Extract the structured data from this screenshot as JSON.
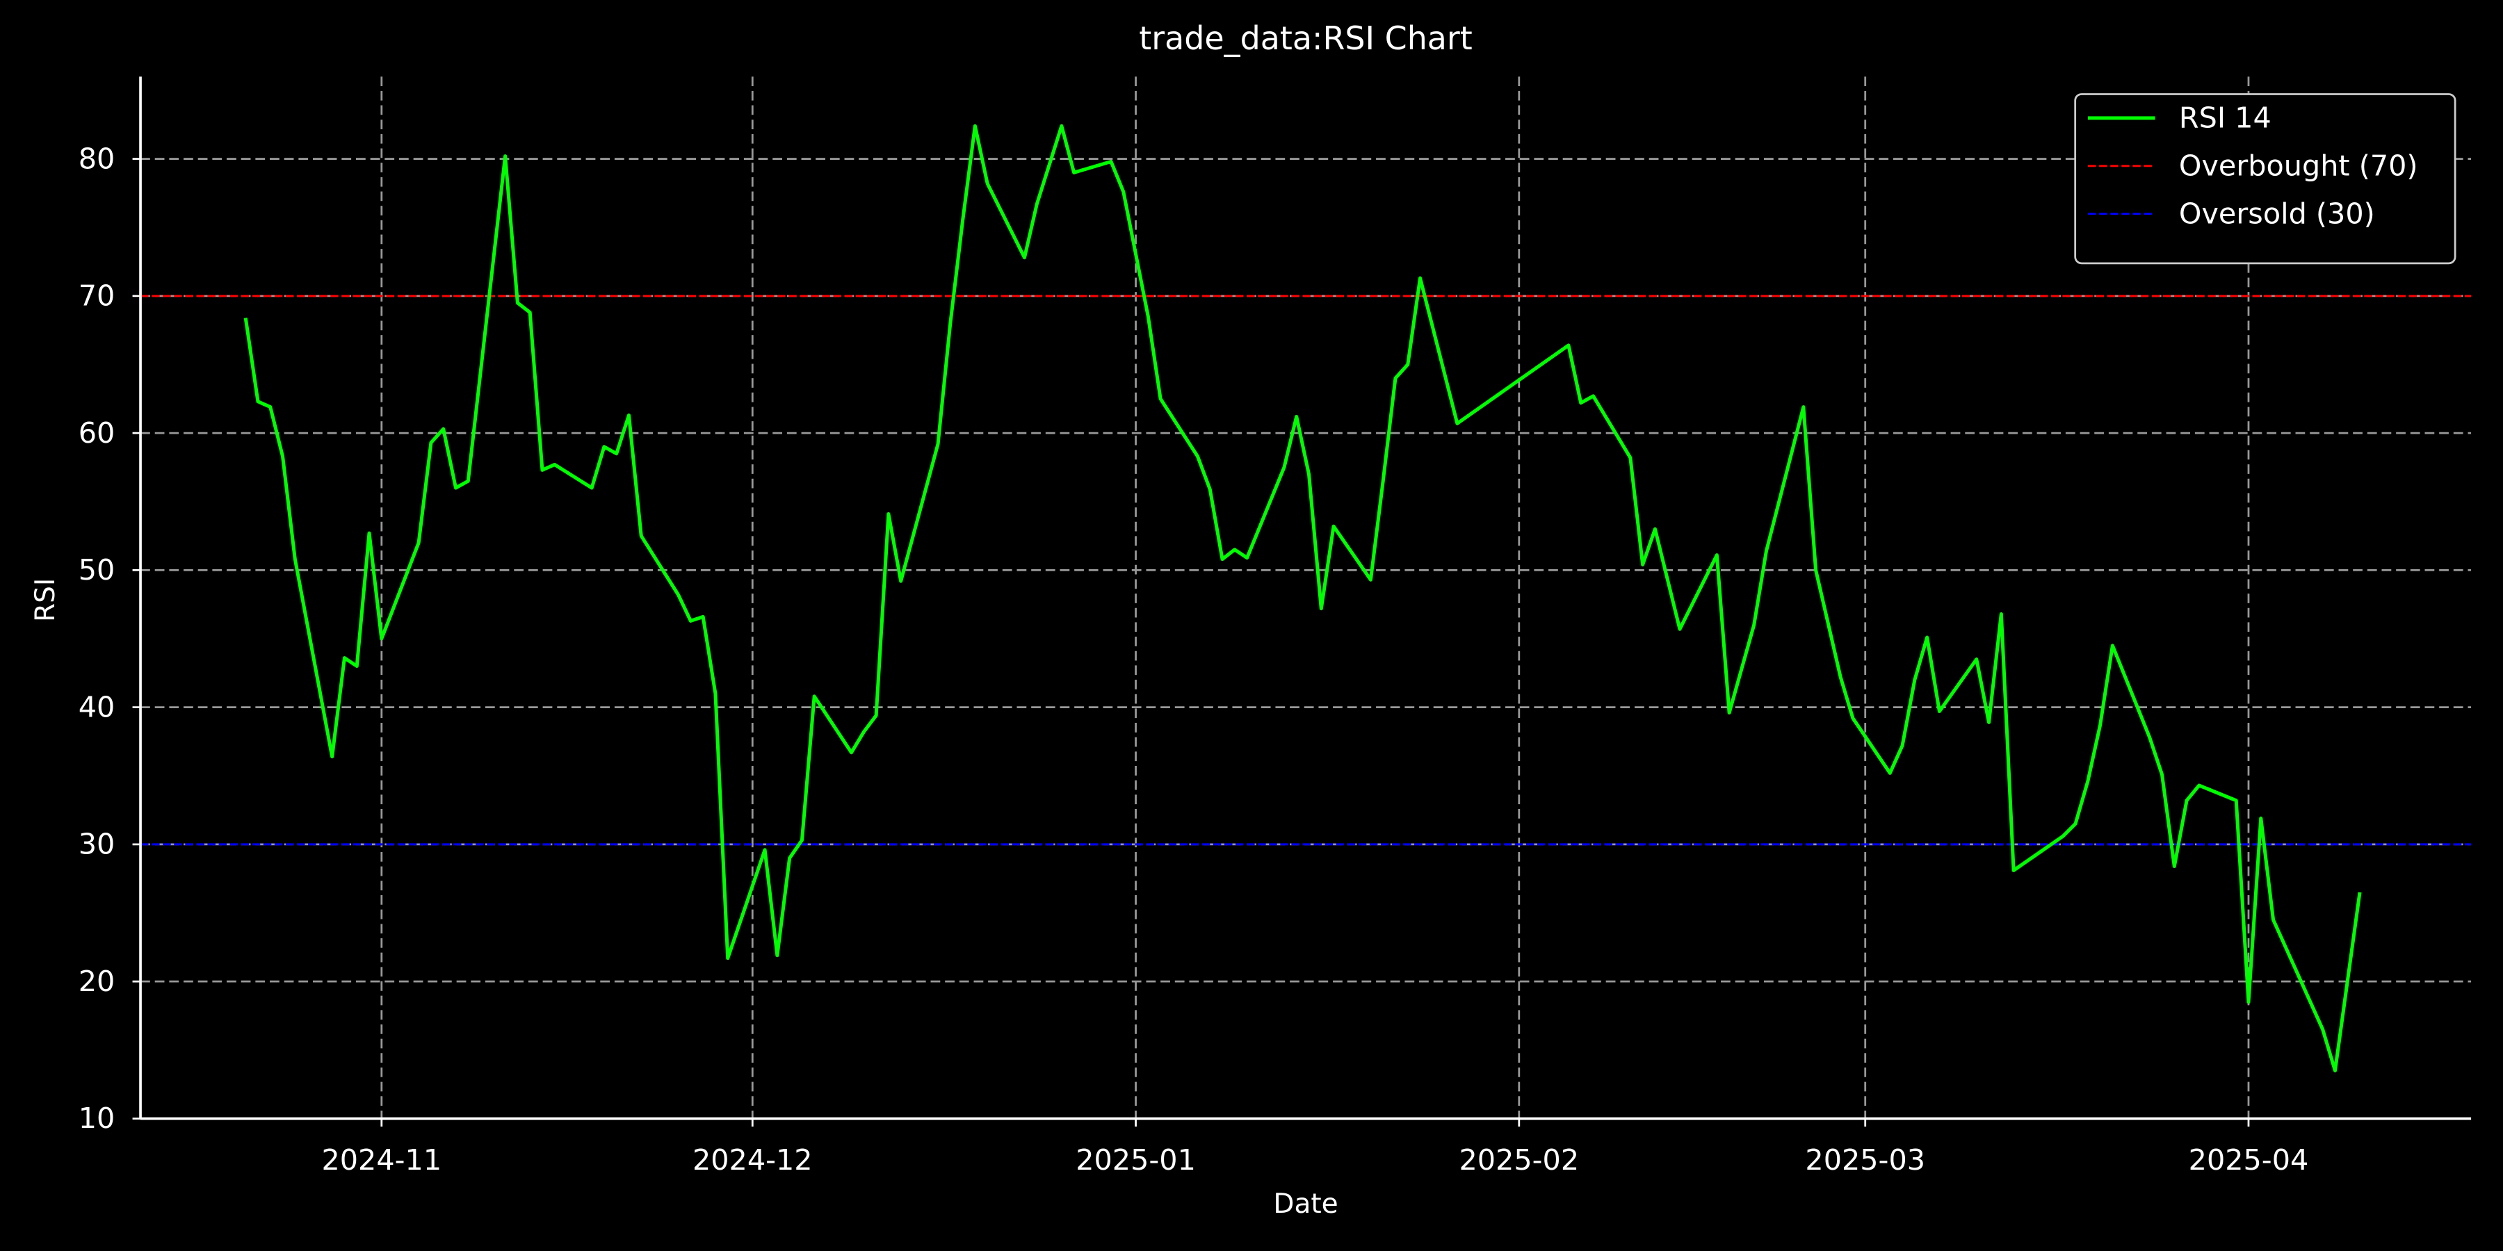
{
  "chart_data": {
    "type": "line",
    "title": "trade_data:RSI Chart",
    "xlabel": "Date",
    "ylabel": "RSI",
    "x": [
      "2024-10-21",
      "2024-10-22",
      "2024-10-23",
      "2024-10-24",
      "2024-10-25",
      "2024-10-28",
      "2024-10-29",
      "2024-10-30",
      "2024-10-31",
      "2024-11-01",
      "2024-11-04",
      "2024-11-05",
      "2024-11-06",
      "2024-11-07",
      "2024-11-08",
      "2024-11-11",
      "2024-11-12",
      "2024-11-13",
      "2024-11-14",
      "2024-11-15",
      "2024-11-18",
      "2024-11-19",
      "2024-11-20",
      "2024-11-21",
      "2024-11-22",
      "2024-11-25",
      "2024-11-26",
      "2024-11-27",
      "2024-11-28",
      "2024-11-29",
      "2024-12-02",
      "2024-12-03",
      "2024-12-04",
      "2024-12-05",
      "2024-12-06",
      "2024-12-09",
      "2024-12-10",
      "2024-12-11",
      "2024-12-12",
      "2024-12-13",
      "2024-12-16",
      "2024-12-17",
      "2024-12-18",
      "2024-12-19",
      "2024-12-20",
      "2024-12-23",
      "2024-12-24",
      "2024-12-26",
      "2024-12-27",
      "2024-12-30",
      "2024-12-31",
      "2025-01-02",
      "2025-01-03",
      "2025-01-06",
      "2025-01-07",
      "2025-01-08",
      "2025-01-09",
      "2025-01-10",
      "2025-01-13",
      "2025-01-14",
      "2025-01-15",
      "2025-01-16",
      "2025-01-17",
      "2025-01-20",
      "2025-01-21",
      "2025-01-22",
      "2025-01-23",
      "2025-01-24",
      "2025-01-27",
      "2025-02-05",
      "2025-02-06",
      "2025-02-07",
      "2025-02-10",
      "2025-02-11",
      "2025-02-12",
      "2025-02-14",
      "2025-02-17",
      "2025-02-18",
      "2025-02-20",
      "2025-02-21",
      "2025-02-24",
      "2025-02-25",
      "2025-02-27",
      "2025-02-28",
      "2025-03-03",
      "2025-03-04",
      "2025-03-05",
      "2025-03-06",
      "2025-03-07",
      "2025-03-10",
      "2025-03-11",
      "2025-03-12",
      "2025-03-13",
      "2025-03-17",
      "2025-03-18",
      "2025-03-19",
      "2025-03-20",
      "2025-03-21",
      "2025-03-24",
      "2025-03-25",
      "2025-03-26",
      "2025-03-27",
      "2025-03-28",
      "2025-03-31",
      "2025-04-01",
      "2025-04-02",
      "2025-04-03",
      "2025-04-07",
      "2025-04-08",
      "2025-04-10"
    ],
    "series": [
      {
        "name": "RSI 14",
        "color": "#00ff00",
        "values": [
          68.4,
          62.3,
          61.9,
          58.3,
          50.8,
          36.4,
          43.6,
          43.0,
          52.7,
          45.0,
          52.0,
          59.3,
          60.3,
          56.0,
          56.5,
          80.2,
          69.5,
          68.8,
          57.3,
          57.7,
          56.0,
          59.0,
          58.5,
          61.3,
          52.5,
          48.2,
          46.3,
          46.6,
          41.0,
          21.7,
          29.6,
          21.9,
          29.0,
          30.3,
          40.8,
          36.7,
          38.2,
          39.4,
          54.1,
          49.2,
          59.2,
          68.0,
          75.5,
          82.4,
          78.2,
          72.8,
          76.7,
          82.4,
          79.0,
          79.8,
          77.6,
          68.5,
          62.5,
          58.3,
          55.9,
          50.8,
          51.5,
          50.9,
          57.5,
          61.2,
          57.0,
          47.2,
          53.2,
          49.3,
          56.5,
          64.0,
          65.0,
          71.3,
          60.7,
          66.4,
          62.2,
          62.7,
          58.2,
          50.4,
          53.0,
          45.7,
          51.1,
          39.6,
          46.0,
          51.4,
          61.9,
          50.0,
          42.2,
          39.2,
          35.2,
          37.2,
          42.0,
          45.1,
          39.7,
          43.5,
          38.9,
          46.8,
          28.1,
          30.6,
          31.5,
          34.6,
          38.7,
          44.5,
          37.8,
          35.1,
          28.4,
          33.2,
          34.3,
          33.2,
          18.5,
          31.9,
          24.5,
          16.5,
          13.5,
          26.5
        ]
      }
    ],
    "reference_lines": [
      {
        "name": "Overbought (70)",
        "value": 70,
        "color": "#ff0000"
      },
      {
        "name": "Oversold (30)",
        "value": 30,
        "color": "#0000ff"
      }
    ],
    "xlim": [
      "2024-10-12T12:00:00Z",
      "2025-04-19T00:00:00Z"
    ],
    "xticks": [
      {
        "value": "2024-11-01",
        "label": "2024-11"
      },
      {
        "value": "2024-12-01",
        "label": "2024-12"
      },
      {
        "value": "2025-01-01",
        "label": "2025-01"
      },
      {
        "value": "2025-02-01",
        "label": "2025-02"
      },
      {
        "value": "2025-03-01",
        "label": "2025-03"
      },
      {
        "value": "2025-04-01",
        "label": "2025-04"
      }
    ],
    "ylim": [
      10,
      86
    ],
    "yticks": [
      10,
      20,
      30,
      40,
      50,
      60,
      70,
      80
    ],
    "grid": true,
    "legend": "upper right"
  }
}
